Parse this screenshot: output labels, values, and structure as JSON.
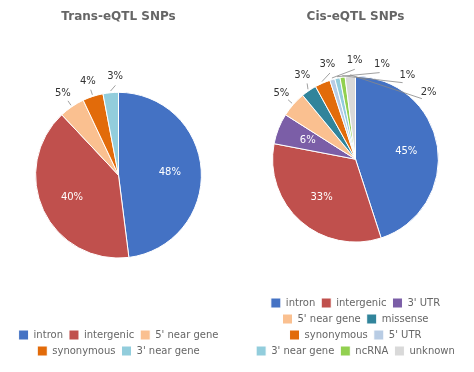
{
  "chart_data": [
    {
      "type": "pie",
      "title": "Trans-eQTL SNPs",
      "categories": [
        "intron",
        "intergenic",
        "5' near gene",
        "synonymous",
        "3' near gene"
      ],
      "values": [
        48,
        40,
        5,
        4,
        3
      ],
      "value_labels": [
        "48%",
        "40%",
        "5%",
        "4%",
        "3%"
      ],
      "colors": [
        "#4472C4",
        "#C0504D",
        "#FAC090",
        "#E26B0A",
        "#92CDDC"
      ],
      "data_labels": true,
      "legend": "bottom"
    },
    {
      "type": "pie",
      "title": "Cis-eQTL SNPs",
      "categories": [
        "intron",
        "intergenic",
        "3' UTR",
        "5' near gene",
        "missense",
        "synonymous",
        "5' UTR",
        "3' near gene",
        "ncRNA",
        "unknown"
      ],
      "values": [
        45,
        33,
        6,
        5,
        3,
        3,
        1,
        1,
        1,
        2
      ],
      "value_labels": [
        "45%",
        "33%",
        "6%",
        "5%",
        "3%",
        "3%",
        "1%",
        "1%",
        "1%",
        "2%"
      ],
      "colors": [
        "#4472C4",
        "#C0504D",
        "#7B5EA7",
        "#FAC090",
        "#31849B",
        "#E26B0A",
        "#B8CCE4",
        "#92CDDC",
        "#92D050",
        "#D9D9D9"
      ],
      "data_labels": true,
      "legend": "bottom"
    }
  ]
}
